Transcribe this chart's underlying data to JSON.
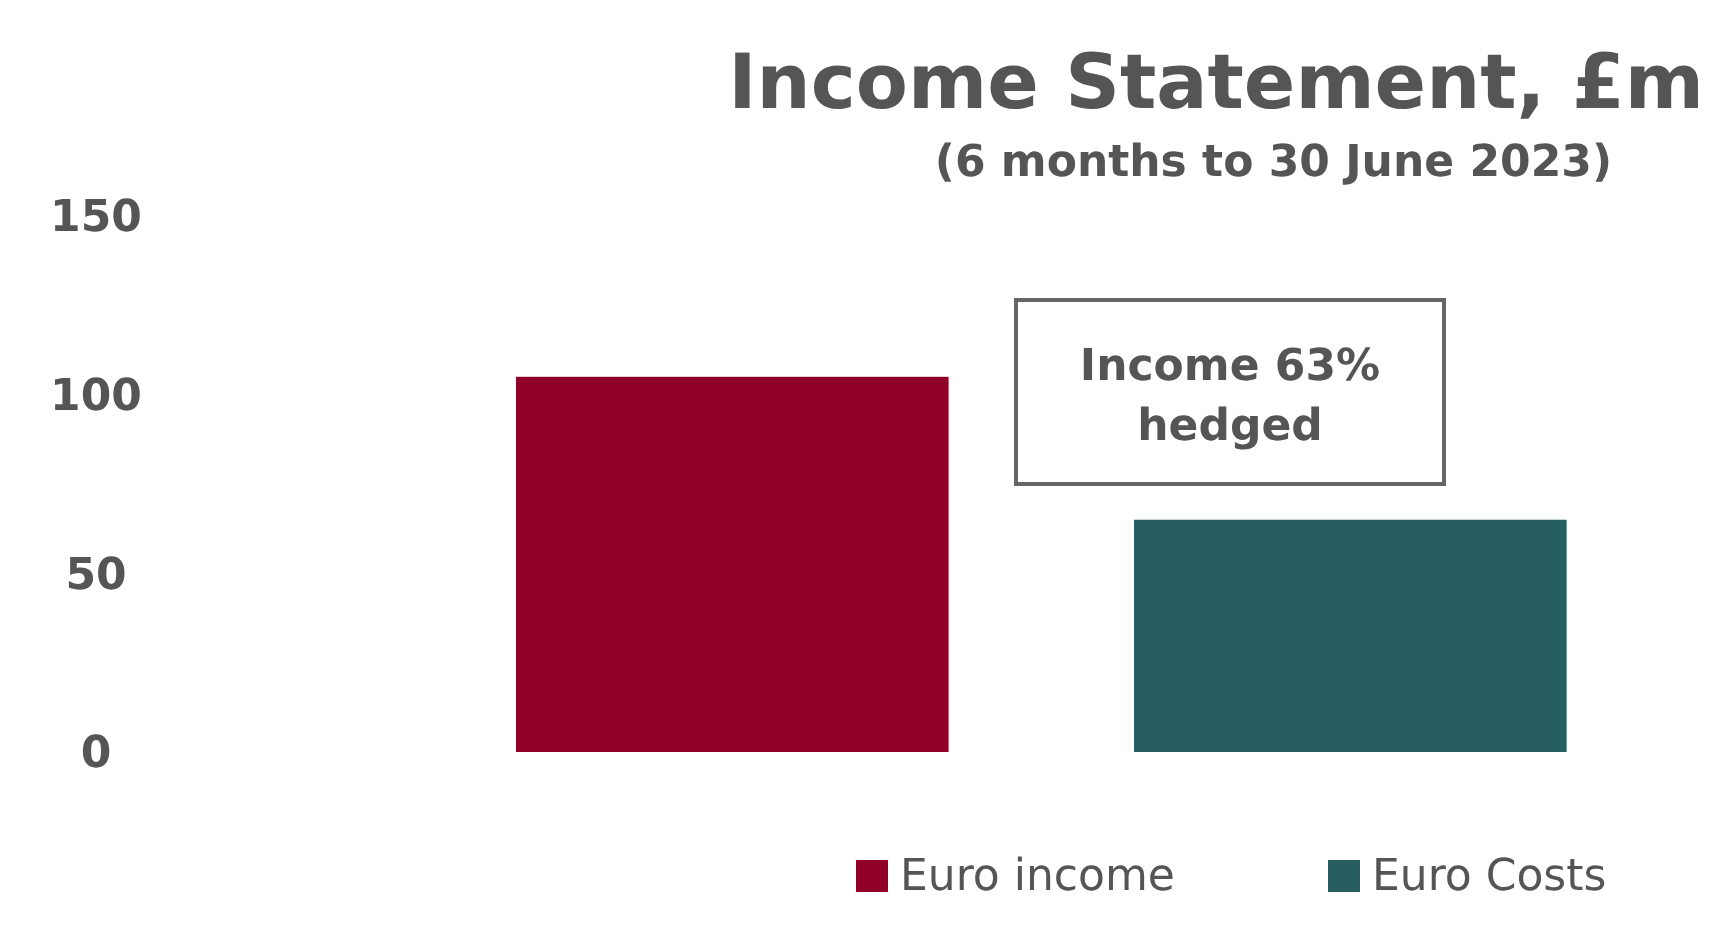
{
  "chart_data": {
    "type": "bar",
    "title": "Income Statement, £m",
    "subtitle": "(6 months to 30 June 2023)",
    "categories": [
      null
    ],
    "series": [
      {
        "name": "Euro income",
        "color": "#910028",
        "values": [
          105
        ]
      },
      {
        "name": "Euro Costs",
        "color": "#275e62",
        "values": [
          65
        ]
      }
    ],
    "ylim": [
      0,
      150
    ],
    "yticks": [
      0,
      50,
      100,
      150
    ],
    "grid": false,
    "legend": "bottom right",
    "annotations": [
      "Income 63% hedged"
    ]
  }
}
